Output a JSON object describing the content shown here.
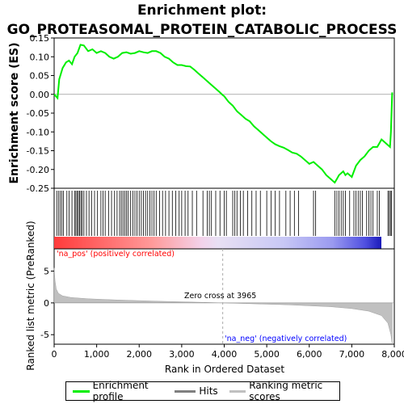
{
  "title_line1": "Enrichment plot:",
  "title_line2": "GO_PROTEASOMAL_PROTEIN_CATABOLIC_PROCESS",
  "legend": [
    {
      "label": "Enrichment profile",
      "color": "#00ee00"
    },
    {
      "label": "Hits",
      "color": "#7f7f7f"
    },
    {
      "label": "Ranking metric scores",
      "color": "#c0c0c0"
    }
  ],
  "annotations": {
    "pos_label": "'na_pos' (positively correlated)",
    "neg_label": "'na_neg' (negatively correlated)",
    "zero_cross": "Zero cross at 3965"
  },
  "colors": {
    "profile": "#00ee00",
    "pos_text": "#ff0000",
    "neg_text": "#0000ff",
    "metric_fill": "#c0c0c0",
    "hits": "#000000"
  },
  "chart_data": {
    "type": "line",
    "top_panel": {
      "ylabel": "Enrichment score (ES)",
      "ylim": [
        -0.25,
        0.15
      ],
      "yticks": [
        "0.15",
        "0.10",
        "0.05",
        "0.00",
        "-0.05",
        "-0.10",
        "-0.15",
        "-0.20",
        "-0.25"
      ],
      "ytick_values": [
        0.15,
        0.1,
        0.05,
        0.0,
        -0.05,
        -0.1,
        -0.15,
        -0.2,
        -0.25
      ],
      "series": [
        {
          "name": "Enrichment profile",
          "x": [
            0,
            80,
            120,
            200,
            280,
            350,
            420,
            480,
            550,
            620,
            700,
            800,
            900,
            1000,
            1100,
            1200,
            1300,
            1400,
            1500,
            1600,
            1700,
            1800,
            1900,
            2000,
            2100,
            2200,
            2300,
            2400,
            2500,
            2600,
            2700,
            2800,
            2900,
            3000,
            3100,
            3200,
            3300,
            3400,
            3500,
            3600,
            3700,
            3800,
            3900,
            3965,
            4000,
            4100,
            4200,
            4300,
            4400,
            4500,
            4600,
            4700,
            4800,
            4900,
            5000,
            5100,
            5200,
            5300,
            5400,
            5500,
            5600,
            5700,
            5800,
            5900,
            6000,
            6100,
            6200,
            6300,
            6400,
            6500,
            6600,
            6650,
            6700,
            6750,
            6800,
            6850,
            6900,
            7000,
            7100,
            7200,
            7300,
            7400,
            7500,
            7600,
            7700,
            7800,
            7900,
            7920,
            7950
          ],
          "y": [
            0.0,
            -0.01,
            0.04,
            0.07,
            0.085,
            0.09,
            0.08,
            0.1,
            0.11,
            0.132,
            0.13,
            0.115,
            0.12,
            0.11,
            0.115,
            0.11,
            0.1,
            0.095,
            0.1,
            0.11,
            0.112,
            0.108,
            0.11,
            0.115,
            0.112,
            0.11,
            0.115,
            0.115,
            0.11,
            0.1,
            0.095,
            0.085,
            0.078,
            0.078,
            0.075,
            0.074,
            0.065,
            0.055,
            0.045,
            0.035,
            0.025,
            0.015,
            0.005,
            -0.002,
            -0.005,
            -0.02,
            -0.03,
            -0.045,
            -0.055,
            -0.065,
            -0.072,
            -0.085,
            -0.095,
            -0.105,
            -0.115,
            -0.125,
            -0.133,
            -0.138,
            -0.142,
            -0.148,
            -0.155,
            -0.158,
            -0.165,
            -0.175,
            -0.185,
            -0.18,
            -0.19,
            -0.2,
            -0.215,
            -0.225,
            -0.235,
            -0.225,
            -0.215,
            -0.21,
            -0.205,
            -0.215,
            -0.21,
            -0.22,
            -0.19,
            -0.175,
            -0.165,
            -0.15,
            -0.14,
            -0.14,
            -0.12,
            -0.13,
            -0.14,
            -0.1,
            0.005
          ]
        }
      ]
    },
    "hits_panel": {
      "hit_positions": [
        60,
        100,
        140,
        180,
        220,
        300,
        350,
        420,
        480,
        510,
        540,
        570,
        600,
        630,
        660,
        700,
        760,
        820,
        880,
        950,
        1020,
        1100,
        1150,
        1200,
        1280,
        1350,
        1420,
        1480,
        1540,
        1580,
        1620,
        1660,
        1700,
        1740,
        1800,
        1850,
        1900,
        1950,
        2000,
        2050,
        2100,
        2150,
        2200,
        2250,
        2300,
        2350,
        2400,
        2480,
        2550,
        2620,
        2700,
        2780,
        2860,
        2940,
        3000,
        3080,
        3150,
        3250,
        3350,
        3500,
        3600,
        3650,
        3700,
        3800,
        3900,
        4000,
        4050,
        4200,
        4250,
        4300,
        4380,
        4450,
        4550,
        4650,
        4750,
        4850,
        5000,
        5100,
        5200,
        5300,
        5450,
        5550,
        5650,
        5750,
        6100,
        6150,
        6600,
        6650,
        6700,
        6750,
        6800,
        6850,
        6950,
        7050,
        7100,
        7150,
        7200,
        7250,
        7350,
        7400,
        7450,
        7500,
        7600,
        7650,
        7850,
        7880,
        7910,
        7930
      ]
    },
    "metric_panel": {
      "ylabel": "Ranked list metric (PreRanked)",
      "xlabel": "Rank in Ordered Dataset",
      "ylim": [
        -6.5,
        8.5
      ],
      "yticks": [
        "5",
        "0",
        "-5"
      ],
      "ytick_values": [
        5,
        0,
        -5
      ],
      "xlim": [
        0,
        8000
      ],
      "xticks": [
        "0",
        "1,000",
        "2,000",
        "3,000",
        "4,000",
        "5,000",
        "6,000",
        "7,000",
        "8,000"
      ],
      "xtick_values": [
        0,
        1000,
        2000,
        3000,
        4000,
        5000,
        6000,
        7000,
        8000
      ],
      "x": [
        0,
        20,
        50,
        100,
        200,
        400,
        800,
        1500,
        2500,
        3500,
        3965,
        4500,
        5500,
        6500,
        7000,
        7400,
        7700,
        7850,
        7920,
        7950
      ],
      "y": [
        5.5,
        3.5,
        2.2,
        1.5,
        1.1,
        0.85,
        0.65,
        0.45,
        0.25,
        0.08,
        0.0,
        -0.1,
        -0.3,
        -0.6,
        -0.9,
        -1.3,
        -2.0,
        -3.2,
        -5.0,
        -6.5
      ],
      "zero_cross": 3965
    }
  }
}
